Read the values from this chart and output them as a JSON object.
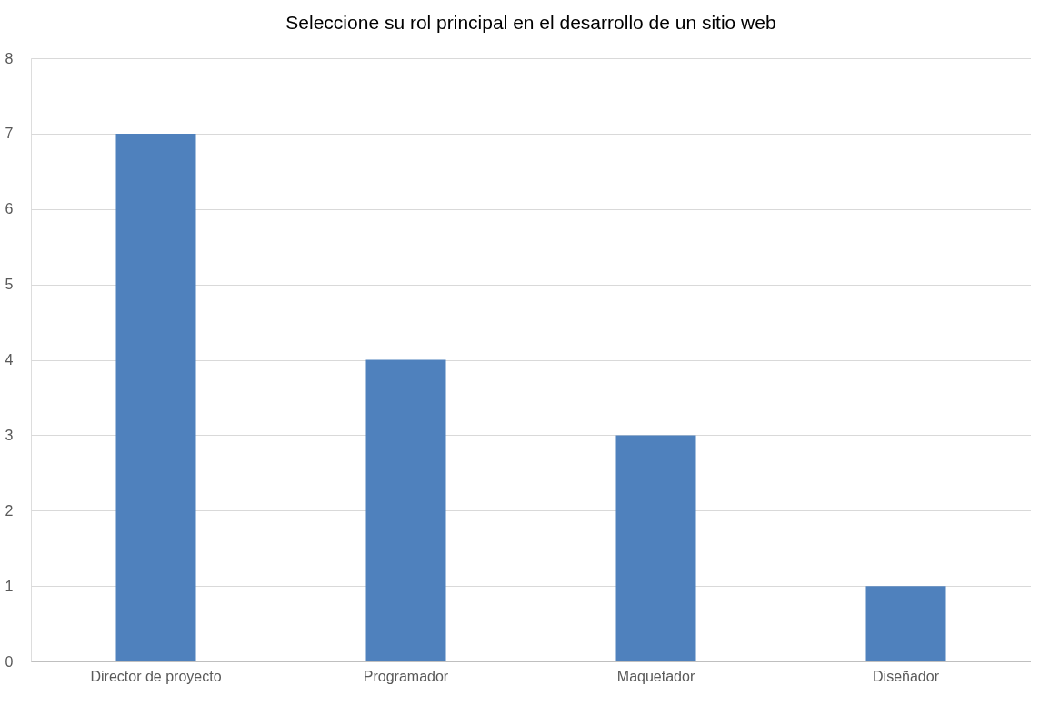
{
  "chart_data": {
    "type": "bar",
    "title": "Seleccione su rol principal en el desarrollo de un sitio web",
    "categories": [
      "Director de proyecto",
      "Programador",
      "Maquetador",
      "Diseñador"
    ],
    "values": [
      7,
      4,
      3,
      1
    ],
    "color": "#4f81bd",
    "ylim": [
      0,
      8
    ],
    "yticks": [
      0,
      1,
      2,
      3,
      4,
      5,
      6,
      7,
      8
    ],
    "grid": "y"
  }
}
